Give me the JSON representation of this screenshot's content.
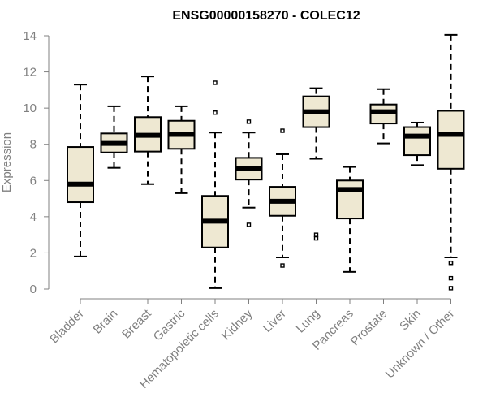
{
  "chart_data": {
    "type": "boxplot",
    "title": "ENSG00000158270 - COLEC12",
    "xlabel": "",
    "ylabel": "Expression",
    "ylim": [
      0,
      14
    ],
    "yticks": [
      0,
      2,
      4,
      6,
      8,
      10,
      12,
      14
    ],
    "box_color": "#EEE8D2",
    "categories": [
      "Bladder",
      "Brain",
      "Breast",
      "Gastric",
      "Hematopoietic cells",
      "Kidney",
      "Liver",
      "Lung",
      "Pancreas",
      "Prostate",
      "Skin",
      "Unknown / Other"
    ],
    "series": [
      {
        "name": "Bladder",
        "min": 1.8,
        "q1": 4.8,
        "median": 5.8,
        "q3": 7.85,
        "max": 11.3,
        "outliers": []
      },
      {
        "name": "Brain",
        "min": 6.7,
        "q1": 7.55,
        "median": 8.05,
        "q3": 8.6,
        "max": 10.1,
        "outliers": []
      },
      {
        "name": "Breast",
        "min": 5.8,
        "q1": 7.6,
        "median": 8.5,
        "q3": 9.5,
        "max": 11.75,
        "outliers": []
      },
      {
        "name": "Gastric",
        "min": 5.3,
        "q1": 7.75,
        "median": 8.55,
        "q3": 9.3,
        "max": 10.1,
        "outliers": []
      },
      {
        "name": "Hematopoietic cells",
        "min": 0.05,
        "q1": 2.3,
        "median": 3.75,
        "q3": 5.15,
        "max": 8.65,
        "outliers": [
          9.75,
          11.4
        ]
      },
      {
        "name": "Kidney",
        "min": 4.5,
        "q1": 6.05,
        "median": 6.65,
        "q3": 7.25,
        "max": 8.65,
        "outliers": [
          3.55,
          9.25
        ]
      },
      {
        "name": "Liver",
        "min": 1.75,
        "q1": 4.05,
        "median": 4.85,
        "q3": 5.65,
        "max": 7.45,
        "outliers": [
          1.3,
          8.75
        ]
      },
      {
        "name": "Lung",
        "min": 7.2,
        "q1": 8.95,
        "median": 9.8,
        "q3": 10.65,
        "max": 11.1,
        "outliers": [
          2.8,
          3.0
        ]
      },
      {
        "name": "Pancreas",
        "min": 0.95,
        "q1": 3.9,
        "median": 5.5,
        "q3": 6.0,
        "max": 6.75,
        "outliers": []
      },
      {
        "name": "Prostate",
        "min": 8.05,
        "q1": 9.15,
        "median": 9.8,
        "q3": 10.2,
        "max": 11.05,
        "outliers": []
      },
      {
        "name": "Skin",
        "min": 6.85,
        "q1": 7.4,
        "median": 8.45,
        "q3": 8.95,
        "max": 9.2,
        "outliers": []
      },
      {
        "name": "Unknown / Other",
        "min": 1.75,
        "q1": 6.65,
        "median": 8.55,
        "q3": 9.85,
        "max": 14.05,
        "outliers": [
          1.45,
          0.6,
          0.05,
          1.45
        ]
      }
    ]
  }
}
